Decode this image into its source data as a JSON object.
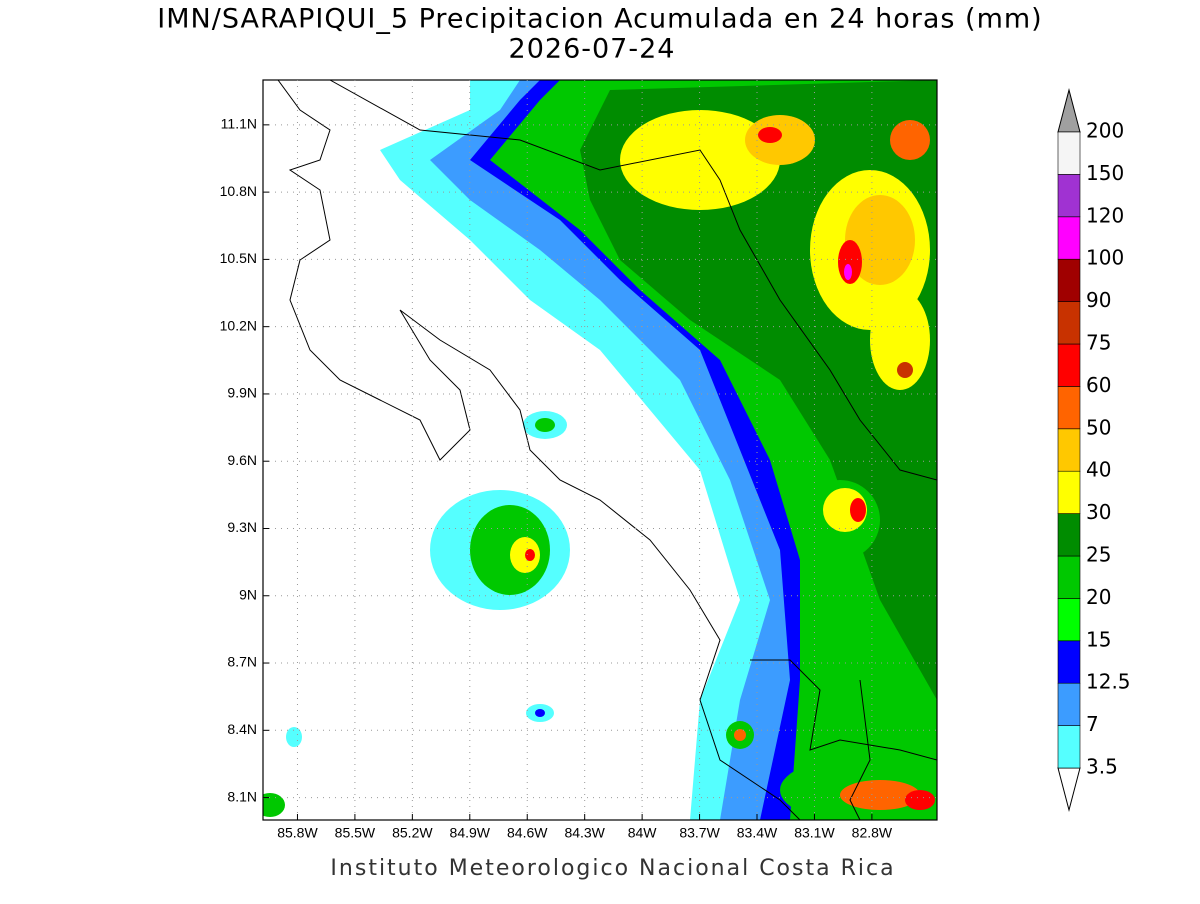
{
  "title": "IMN/SARAPIQUI_5 Precipitacion Acumulada en 24 horas (mm)",
  "subtitle": "2026-07-24",
  "footer": "Instituto Meteorologico Nacional Costa Rica",
  "map": {
    "xlim": [
      -85.98,
      -82.46
    ],
    "ylim": [
      8.0,
      11.3
    ],
    "grid": true,
    "xticks": [
      {
        "value": -85.8,
        "label": "85.8W"
      },
      {
        "value": -85.5,
        "label": "85.5W"
      },
      {
        "value": -85.2,
        "label": "85.2W"
      },
      {
        "value": -84.9,
        "label": "84.9W"
      },
      {
        "value": -84.6,
        "label": "84.6W"
      },
      {
        "value": -84.3,
        "label": "84.3W"
      },
      {
        "value": -84,
        "label": "84W"
      },
      {
        "value": -83.7,
        "label": "83.7W"
      },
      {
        "value": -83.4,
        "label": "83.4W"
      },
      {
        "value": -83.1,
        "label": "83.1W"
      },
      {
        "value": -82.8,
        "label": "82.8W"
      }
    ],
    "yticks": [
      {
        "value": 11.1,
        "label": "11.1N"
      },
      {
        "value": 10.8,
        "label": "10.8N"
      },
      {
        "value": 10.5,
        "label": "10.5N"
      },
      {
        "value": 10.2,
        "label": "10.2N"
      },
      {
        "value": 9.9,
        "label": "9.9N"
      },
      {
        "value": 9.6,
        "label": "9.6N"
      },
      {
        "value": 9.3,
        "label": "9.3N"
      },
      {
        "value": 9,
        "label": "9N"
      },
      {
        "value": 8.7,
        "label": "8.7N"
      },
      {
        "value": 8.4,
        "label": "8.4N"
      },
      {
        "value": 8.1,
        "label": "8.1N"
      }
    ],
    "colorbar": {
      "levels": [
        3.5,
        7,
        12.5,
        15,
        20,
        25,
        30,
        40,
        50,
        60,
        75,
        90,
        100,
        120,
        150,
        200
      ],
      "colors": [
        "#55ffff",
        "#3c9cff",
        "#0000ff",
        "#00ff00",
        "#00c800",
        "#008c00",
        "#ffff00",
        "#ffc800",
        "#ff6400",
        "#ff0000",
        "#c83200",
        "#a00000",
        "#ff00ff",
        "#a032d2",
        "#f5f5f5"
      ],
      "under_color": "#ffffff",
      "over_color": "#a0a0a0"
    }
  }
}
